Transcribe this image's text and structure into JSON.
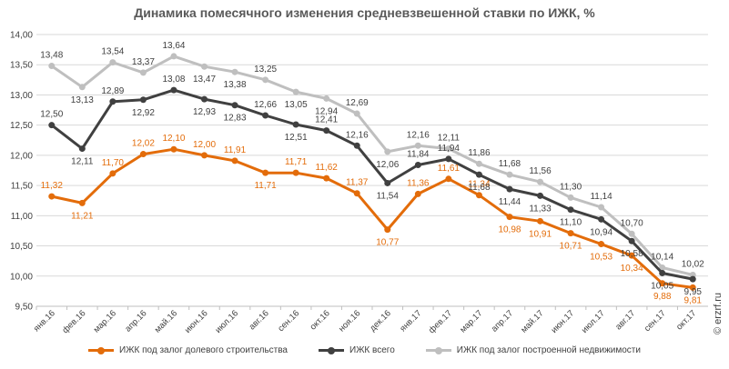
{
  "chart_data": {
    "type": "line",
    "title": "Динамика помесячного изменения средневзвешенной ставки по ИЖК, %",
    "categories": [
      "янв.16",
      "фев.16",
      "мар.16",
      "апр.16",
      "май.16",
      "июн.16",
      "июл.16",
      "авг.16",
      "сен.16",
      "окт.16",
      "ноя.16",
      "дек.16",
      "янв.17",
      "фев.17",
      "мар.17",
      "апр.17",
      "май.17",
      "июн.17",
      "июл.17",
      "авг.17",
      "сен.17",
      "окт.17"
    ],
    "ylim": [
      9.5,
      14.0
    ],
    "yticks": [
      "9,50",
      "10,00",
      "10,50",
      "11,00",
      "11,50",
      "12,00",
      "12,50",
      "13,00",
      "13,50",
      "14,00"
    ],
    "grid": true,
    "legend_position": "bottom",
    "series": [
      {
        "name": "ИЖК под залог долевого строительства",
        "color": "#E36C0A",
        "values": [
          11.32,
          11.21,
          11.7,
          12.02,
          12.1,
          12.0,
          11.91,
          11.71,
          11.71,
          11.62,
          11.37,
          10.77,
          11.36,
          11.61,
          11.34,
          10.98,
          10.91,
          10.71,
          10.53,
          10.34,
          9.88,
          9.81
        ],
        "labels": [
          "11,32",
          "11,21",
          "11,70",
          "12,02",
          "12,10",
          "12,00",
          "11,91",
          "11,71",
          "11,71",
          "11,62",
          "11,37",
          "10,77",
          "11,36",
          "11,61",
          "11,34",
          "10,98",
          "10,91",
          "10,71",
          "10,53",
          "10,34",
          "9,88",
          "9,81"
        ],
        "label_pos": [
          "a",
          "b",
          "a",
          "a",
          "a",
          "a",
          "a",
          "b",
          "a",
          "a",
          "a",
          "b",
          "a",
          "a",
          "a",
          "b",
          "b",
          "b",
          "b",
          "b",
          "b",
          "b"
        ]
      },
      {
        "name": "ИЖК всего",
        "color": "#404040",
        "values": [
          12.5,
          12.11,
          12.89,
          12.92,
          13.08,
          12.93,
          12.83,
          12.66,
          12.51,
          12.41,
          12.16,
          11.54,
          11.84,
          11.94,
          11.68,
          11.44,
          11.33,
          11.1,
          10.94,
          10.58,
          10.05,
          9.95
        ],
        "labels": [
          "12,50",
          "12,11",
          "12,89",
          "12,92",
          "13,08",
          "12,93",
          "12,83",
          "12,66",
          "12,51",
          "12,41",
          "12,16",
          "11,54",
          "11,84",
          "11,94",
          "11,68",
          "11,44",
          "11,33",
          "11,10",
          "10,94",
          "10,58",
          "10,05",
          "9,95"
        ],
        "label_pos": [
          "a",
          "b",
          "a",
          "b",
          "a",
          "b",
          "b",
          "a",
          "b",
          "a",
          "a",
          "b",
          "a",
          "a",
          "b",
          "b",
          "b",
          "b",
          "b",
          "b",
          "b",
          "b"
        ]
      },
      {
        "name": "ИЖК под залог построенной недвижимости",
        "color": "#BFBFBF",
        "values": [
          13.48,
          13.13,
          13.54,
          13.37,
          13.64,
          13.47,
          13.38,
          13.25,
          13.05,
          12.94,
          12.69,
          12.06,
          12.16,
          12.11,
          11.86,
          11.68,
          11.56,
          11.3,
          11.14,
          10.7,
          10.14,
          10.02
        ],
        "labels": [
          "13,48",
          "13,13",
          "13,54",
          "13,37",
          "13,64",
          "13,47",
          "13,38",
          "13,25",
          "13,05",
          "12,94",
          "12,69",
          "12,06",
          "12,16",
          "12,11",
          "11,86",
          "11,68",
          "11,56",
          "11,30",
          "11,14",
          "10,70",
          "10,14",
          "10,02"
        ],
        "label_pos": [
          "a",
          "b",
          "a",
          "a",
          "a",
          "b",
          "b",
          "a",
          "b",
          "b",
          "a",
          "b",
          "a",
          "a",
          "a",
          "a",
          "a",
          "a",
          "a",
          "a",
          "a",
          "a"
        ]
      }
    ]
  },
  "watermark": "© erzrf.ru"
}
